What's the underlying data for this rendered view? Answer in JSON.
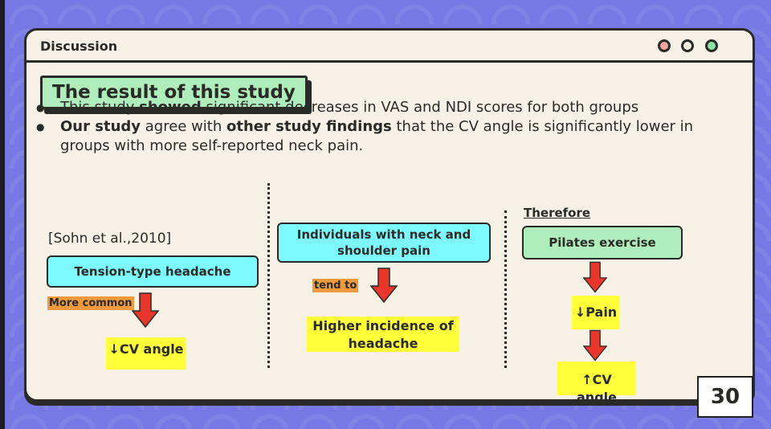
{
  "window": {
    "title": "Discussion",
    "controls": [
      {
        "name": "close",
        "color": "#f4a59e"
      },
      {
        "name": "minimize",
        "color": "#f8f2e6"
      },
      {
        "name": "maximize",
        "color": "#8fe2a6"
      }
    ]
  },
  "slide_title": "The result of this study",
  "bullets": [
    {
      "parts": [
        "This study ",
        "showed",
        " significant decreases in VAS and NDI scores for both groups"
      ]
    },
    {
      "parts": [
        "Our study",
        " agree with ",
        "other study findings",
        " that the CV angle is significantly lower in groups with more self-reported neck pain."
      ]
    }
  ],
  "col1": {
    "citation": "[Sohn et al.,2010]",
    "box": "Tension-type headache",
    "label": "More common",
    "result": "↓CV angle"
  },
  "col2": {
    "box": "Individuals with neck and shoulder pain",
    "label": "tend to",
    "result": "Higher incidence of headache"
  },
  "col3": {
    "heading": "Therefore",
    "box": "Pilates exercise",
    "result1": "↓Pain",
    "result2": "↑CV angle"
  },
  "page_number": "30",
  "colors": {
    "background": "#7678e4",
    "green": "#b0edbd",
    "cyan": "#7dfafd",
    "yellow": "#ffff3a",
    "orange": "#ef9a3c",
    "arrow": "#e8372a"
  }
}
